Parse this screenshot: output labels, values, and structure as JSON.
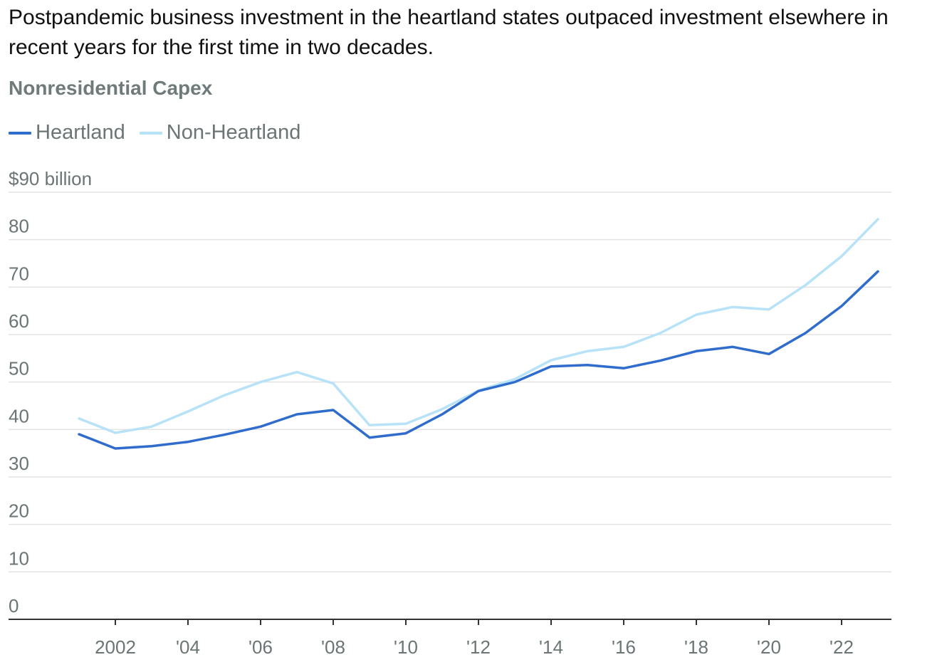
{
  "headline": "Postpandemic business investment in the heartland states outpaced investment elsewhere in recent years for the first time in two decades.",
  "chart_data": {
    "type": "line",
    "title": "Nonresidential Capex",
    "ylabel": "$90 billion",
    "xlabel": "",
    "ylim": [
      0,
      90
    ],
    "xlim": [
      1998,
      2024
    ],
    "y_ticks": [
      {
        "value": 90,
        "label": "$90 billion"
      },
      {
        "value": 80,
        "label": "80"
      },
      {
        "value": 70,
        "label": "70"
      },
      {
        "value": 60,
        "label": "60"
      },
      {
        "value": 50,
        "label": "50"
      },
      {
        "value": 40,
        "label": "40"
      },
      {
        "value": 30,
        "label": "30"
      },
      {
        "value": 20,
        "label": "20"
      },
      {
        "value": 10,
        "label": "10"
      },
      {
        "value": 0,
        "label": "0"
      }
    ],
    "x_ticks": [
      {
        "value": 2002,
        "label": "2002"
      },
      {
        "value": 2004,
        "label": "'04"
      },
      {
        "value": 2006,
        "label": "'06"
      },
      {
        "value": 2008,
        "label": "'08"
      },
      {
        "value": 2010,
        "label": "'10"
      },
      {
        "value": 2012,
        "label": "'12"
      },
      {
        "value": 2014,
        "label": "'14"
      },
      {
        "value": 2016,
        "label": "'16"
      },
      {
        "value": 2018,
        "label": "'18"
      },
      {
        "value": 2020,
        "label": "'20"
      },
      {
        "value": 2022,
        "label": "'22"
      }
    ],
    "x": [
      2001,
      2002,
      2003,
      2004,
      2005,
      2006,
      2007,
      2008,
      2009,
      2010,
      2011,
      2012,
      2013,
      2014,
      2015,
      2016,
      2017,
      2018,
      2019,
      2020,
      2021,
      2022,
      2023
    ],
    "series": [
      {
        "name": "Heartland",
        "color": "#2f6ccc",
        "values": [
          39.0,
          36.0,
          36.5,
          37.4,
          38.9,
          40.6,
          43.2,
          44.1,
          38.3,
          39.2,
          43.2,
          48.1,
          50.0,
          53.3,
          53.6,
          52.9,
          54.5,
          56.5,
          57.4,
          55.9,
          60.3,
          66.0,
          73.3
        ]
      },
      {
        "name": "Non-Heartland",
        "color": "#b7e2f7",
        "values": [
          42.3,
          39.3,
          40.6,
          43.8,
          47.2,
          50.0,
          52.1,
          49.7,
          40.9,
          41.2,
          44.3,
          48.2,
          50.6,
          54.6,
          56.5,
          57.4,
          60.3,
          64.2,
          65.8,
          65.3,
          70.4,
          76.5,
          84.3
        ]
      }
    ],
    "grid": true,
    "legend": "top-left"
  }
}
